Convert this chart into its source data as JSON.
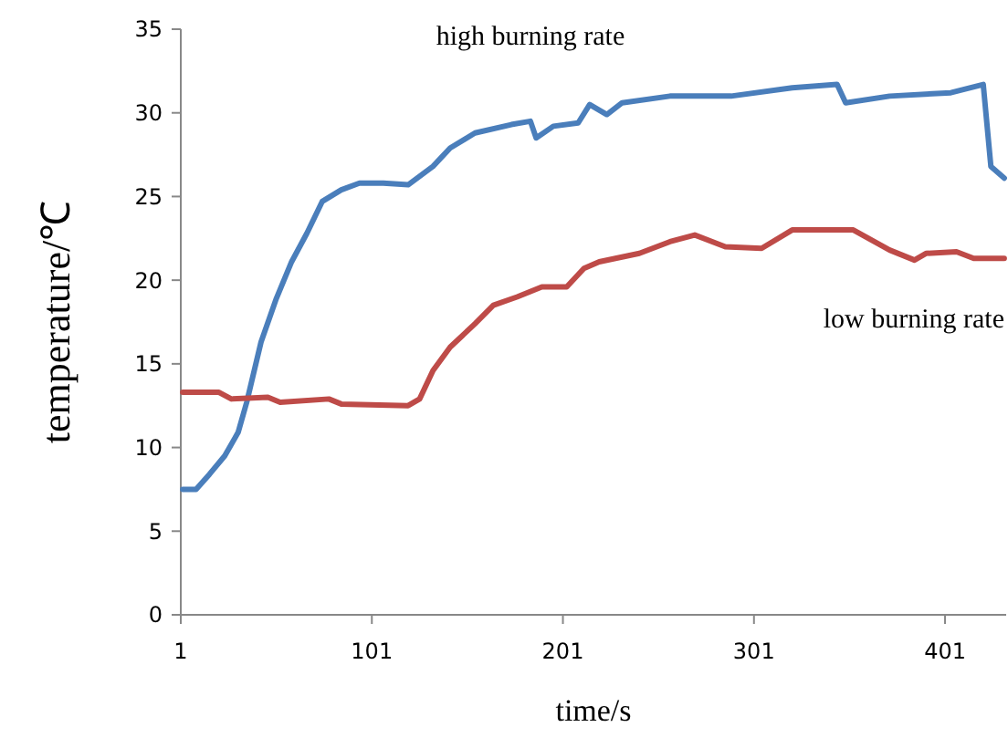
{
  "chart_data": {
    "type": "line",
    "xlabel": "time/s",
    "ylabel": "temperature/℃",
    "xlim": [
      1,
      433
    ],
    "xticks": [
      1,
      101,
      201,
      301,
      401
    ],
    "ylim": [
      0,
      35
    ],
    "yticks": [
      0,
      5,
      10,
      15,
      20,
      25,
      30,
      35
    ],
    "grid": false,
    "marker": "none",
    "line_style": "solid",
    "series": [
      {
        "name": "high burning rate",
        "color": "#4a7ebb",
        "x": [
          2,
          9,
          16,
          24,
          31,
          35.5,
          43,
          51,
          59,
          67,
          75,
          85,
          94.5,
          107,
          120,
          133,
          142,
          155,
          174,
          184,
          187,
          196,
          209,
          215,
          224,
          232,
          257,
          289,
          321,
          344.5,
          349,
          372,
          404,
          421,
          425,
          432
        ],
        "values": [
          7.5,
          7.5,
          8.4,
          9.5,
          10.9,
          12.7,
          16.3,
          18.9,
          21.1,
          22.8,
          24.7,
          25.4,
          25.8,
          25.8,
          25.7,
          26.8,
          27.9,
          28.8,
          29.3,
          29.5,
          28.5,
          29.2,
          29.4,
          30.5,
          29.9,
          30.6,
          31.0,
          31.0,
          31.5,
          31.7,
          30.6,
          31.0,
          31.2,
          31.7,
          26.8,
          26.1
        ]
      },
      {
        "name": "low burning rate",
        "color": "#be4b48",
        "x": [
          2,
          21,
          27.5,
          46.6,
          53,
          78.5,
          85,
          120,
          126,
          133,
          142,
          155,
          164.6,
          177,
          190,
          203,
          212,
          220,
          241,
          257,
          270,
          286,
          305,
          321,
          353,
          372,
          385,
          391,
          407,
          416,
          432
        ],
        "values": [
          13.3,
          13.3,
          12.9,
          13.0,
          12.7,
          12.9,
          12.6,
          12.5,
          12.9,
          14.6,
          16.0,
          17.4,
          18.5,
          19.0,
          19.6,
          19.6,
          20.7,
          21.1,
          21.6,
          22.3,
          22.7,
          22.0,
          21.9,
          23.0,
          23.0,
          21.8,
          21.2,
          21.6,
          21.7,
          21.3,
          21.3
        ]
      }
    ]
  }
}
